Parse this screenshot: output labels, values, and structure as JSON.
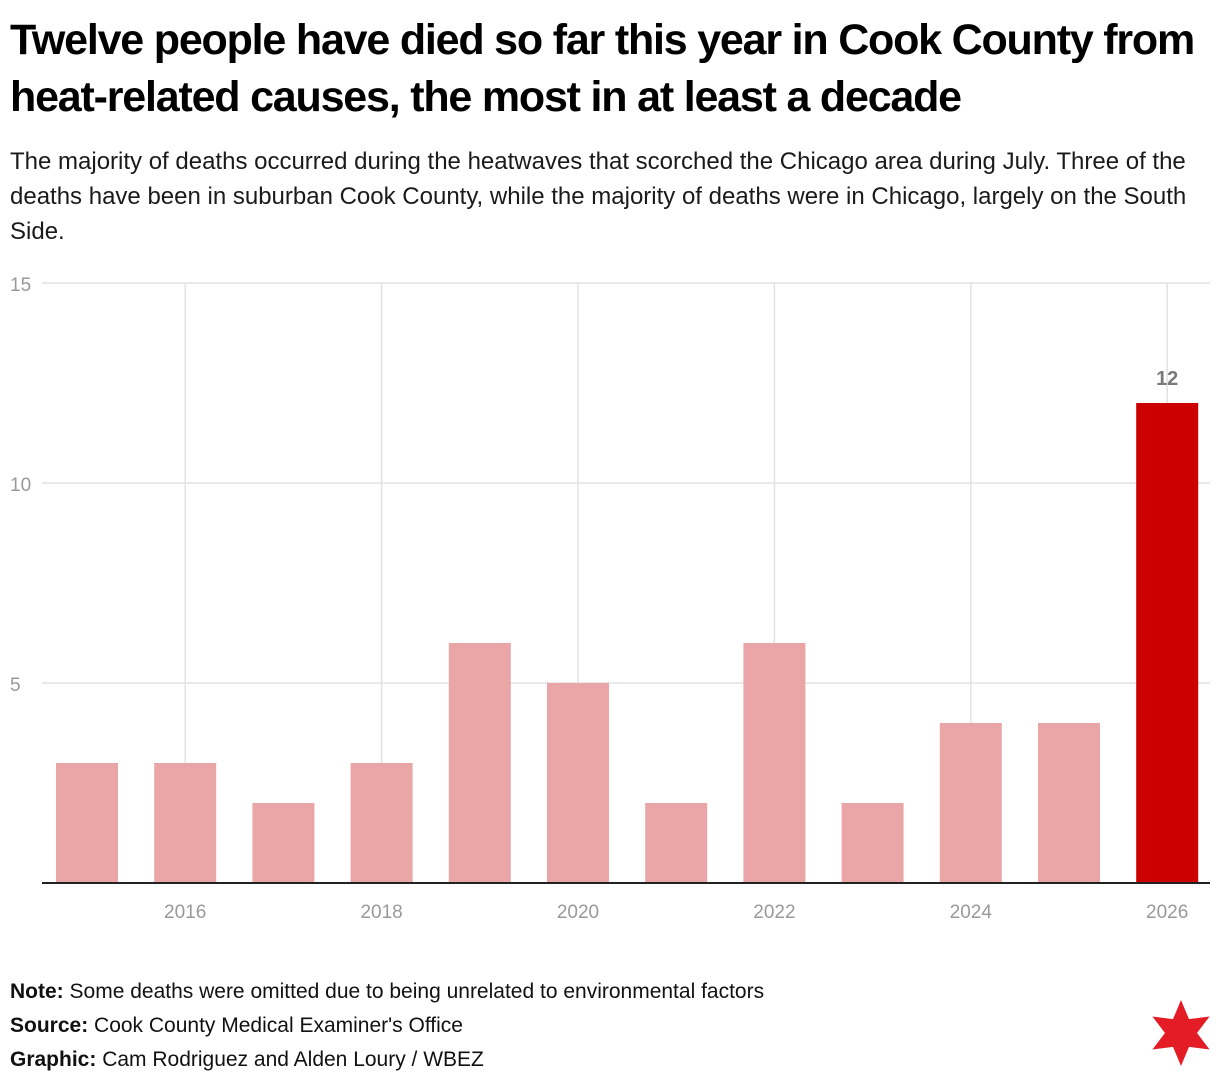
{
  "title": "Twelve people have died so far this year in Cook County from heat-related causes, the most in at least a decade",
  "subtitle": "The majority of deaths occurred during the heatwaves that scorched the Chicago area during July. Three of the deaths have been in suburban Cook County, while the majority of deaths were in Chicago, largely on the South Side.",
  "chart_data": {
    "type": "bar",
    "title": "",
    "xlabel": "",
    "ylabel": "",
    "categories": [
      "2015",
      "2016",
      "2017",
      "2018",
      "2019",
      "2020",
      "2021",
      "2022",
      "2023",
      "2024",
      "2025",
      "2026"
    ],
    "values": [
      3,
      3,
      2,
      3,
      6,
      5,
      2,
      6,
      2,
      4,
      4,
      12
    ],
    "x_tick_labels": [
      "2016",
      "2018",
      "2020",
      "2022",
      "2024",
      "2026"
    ],
    "y_ticks": [
      "5",
      "10",
      "15"
    ],
    "ylim": [
      0,
      15
    ],
    "grid": true,
    "data_labels": [
      {
        "category": "2026",
        "text": "12"
      }
    ],
    "highlight_category": "2026",
    "colors": {
      "bar": "#eaa6a6",
      "highlight": "#cc0000",
      "grid": "#e2e2e2",
      "axis": "#222222",
      "tick_text": "#999999",
      "data_label": "#7a7a7a"
    }
  },
  "footer": {
    "note_label": "Note:",
    "note_text": "Some deaths were omitted due to being unrelated to environmental factors",
    "source_label": "Source:",
    "source_text": "Cook County Medical Examiner's Office",
    "graphic_label": "Graphic:",
    "graphic_text": "Cam Rodriguez and Alden Loury / WBEZ"
  },
  "logo": {
    "icon": "six-pointed-star-icon",
    "color": "#e31c25"
  }
}
